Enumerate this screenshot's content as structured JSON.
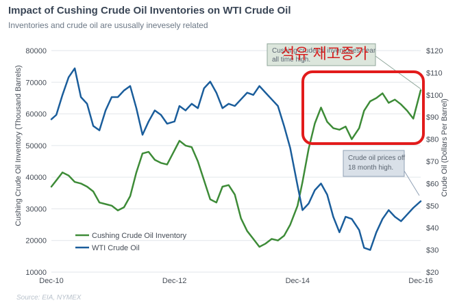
{
  "header": {
    "title": "Impact of Cushing Crude Oil Inventories on WTI Crude Oil",
    "subtitle": "Inventories and crude oil are ususally inevesely related"
  },
  "source": "Source: EIA, NYMEX",
  "annotations": {
    "inventory_callout": [
      "Cushing crude oil inventories near",
      "all time high."
    ],
    "price_callout": [
      "Crude oil prices off",
      "18 month high."
    ],
    "korean_overlay": "석유 재고증가"
  },
  "colors": {
    "inventory": "#3d8b37",
    "price": "#1a5d9b",
    "grid": "#e2e6ea",
    "highlight_box": "#e21b1b"
  },
  "chart_data": {
    "type": "line",
    "title": "Impact of Cushing Crude Oil Inventories on WTI Crude Oil",
    "xlabel": "",
    "ylabel_left": "Cushing Crude Oil Inventory (Thousand Barrels)",
    "ylabel_right": "Crude Oil (Dollars Per Barrel)",
    "x_ticks": [
      "Dec-10",
      "Dec-12",
      "Dec-14",
      "Dec-16"
    ],
    "x_range": [
      2010.92,
      2016.92
    ],
    "ylim_left": [
      10000,
      80000
    ],
    "ylim_right": [
      20,
      120
    ],
    "y_ticks_left": [
      "10000",
      "20000",
      "30000",
      "40000",
      "50000",
      "60000",
      "70000",
      "80000"
    ],
    "y_ticks_right": [
      "$20",
      "$30",
      "$40",
      "$50",
      "$60",
      "$70",
      "$80",
      "$90",
      "$100",
      "$110",
      "$120"
    ],
    "grid": "horizontal",
    "legend": "bottom-left",
    "series": [
      {
        "name": "Cushing Crude Oil Inventory",
        "axis": "left",
        "x": [
          2010.92,
          2011.0,
          2011.1,
          2011.2,
          2011.3,
          2011.4,
          2011.5,
          2011.6,
          2011.7,
          2011.8,
          2011.9,
          2012.0,
          2012.1,
          2012.2,
          2012.3,
          2012.4,
          2012.5,
          2012.6,
          2012.7,
          2012.8,
          2012.92,
          2013.0,
          2013.1,
          2013.2,
          2013.3,
          2013.4,
          2013.5,
          2013.6,
          2013.7,
          2013.8,
          2013.9,
          2014.0,
          2014.1,
          2014.2,
          2014.3,
          2014.4,
          2014.5,
          2014.6,
          2014.7,
          2014.8,
          2014.92,
          2015.0,
          2015.1,
          2015.2,
          2015.3,
          2015.4,
          2015.5,
          2015.6,
          2015.7,
          2015.8,
          2015.92,
          2016.0,
          2016.1,
          2016.2,
          2016.3,
          2016.4,
          2016.5,
          2016.6,
          2016.7,
          2016.8,
          2016.92
        ],
        "values": [
          37000,
          39000,
          41500,
          40500,
          38500,
          38000,
          37000,
          35500,
          32000,
          31500,
          31000,
          29500,
          30500,
          34000,
          41500,
          47500,
          48000,
          45500,
          44500,
          44000,
          48500,
          51500,
          50000,
          49500,
          45000,
          39000,
          33000,
          32000,
          37000,
          37500,
          34500,
          27000,
          23000,
          20500,
          18000,
          19000,
          20500,
          20000,
          21500,
          25000,
          31000,
          38500,
          49000,
          57000,
          62000,
          57500,
          55500,
          55000,
          56000,
          52000,
          55500,
          61000,
          64000,
          65000,
          66500,
          63500,
          64500,
          63000,
          61000,
          58500,
          67500
        ]
      },
      {
        "name": "WTI Crude Oil",
        "axis": "right",
        "x": [
          2010.92,
          2011.0,
          2011.1,
          2011.2,
          2011.3,
          2011.4,
          2011.5,
          2011.6,
          2011.7,
          2011.8,
          2011.9,
          2012.0,
          2012.1,
          2012.2,
          2012.3,
          2012.4,
          2012.5,
          2012.6,
          2012.7,
          2012.8,
          2012.92,
          2013.0,
          2013.1,
          2013.2,
          2013.3,
          2013.4,
          2013.5,
          2013.6,
          2013.7,
          2013.8,
          2013.9,
          2014.0,
          2014.1,
          2014.2,
          2014.3,
          2014.4,
          2014.5,
          2014.6,
          2014.7,
          2014.8,
          2014.92,
          2015.0,
          2015.1,
          2015.2,
          2015.3,
          2015.4,
          2015.5,
          2015.6,
          2015.7,
          2015.8,
          2015.92,
          2016.0,
          2016.1,
          2016.2,
          2016.3,
          2016.4,
          2016.5,
          2016.6,
          2016.7,
          2016.8,
          2016.92
        ],
        "values": [
          89,
          91,
          100,
          108,
          112,
          99,
          96,
          86,
          84,
          93,
          99,
          99,
          102,
          104,
          94,
          82,
          88,
          93,
          91,
          87,
          88,
          95,
          93,
          96,
          94,
          103,
          106,
          101,
          94,
          96,
          95,
          98,
          101,
          100,
          104,
          101,
          98,
          95,
          86,
          76,
          59,
          48,
          51,
          57,
          60,
          55,
          45,
          38,
          45,
          44,
          39,
          31,
          30,
          38,
          44,
          48,
          45,
          43,
          46,
          49,
          52
        ]
      }
    ]
  }
}
